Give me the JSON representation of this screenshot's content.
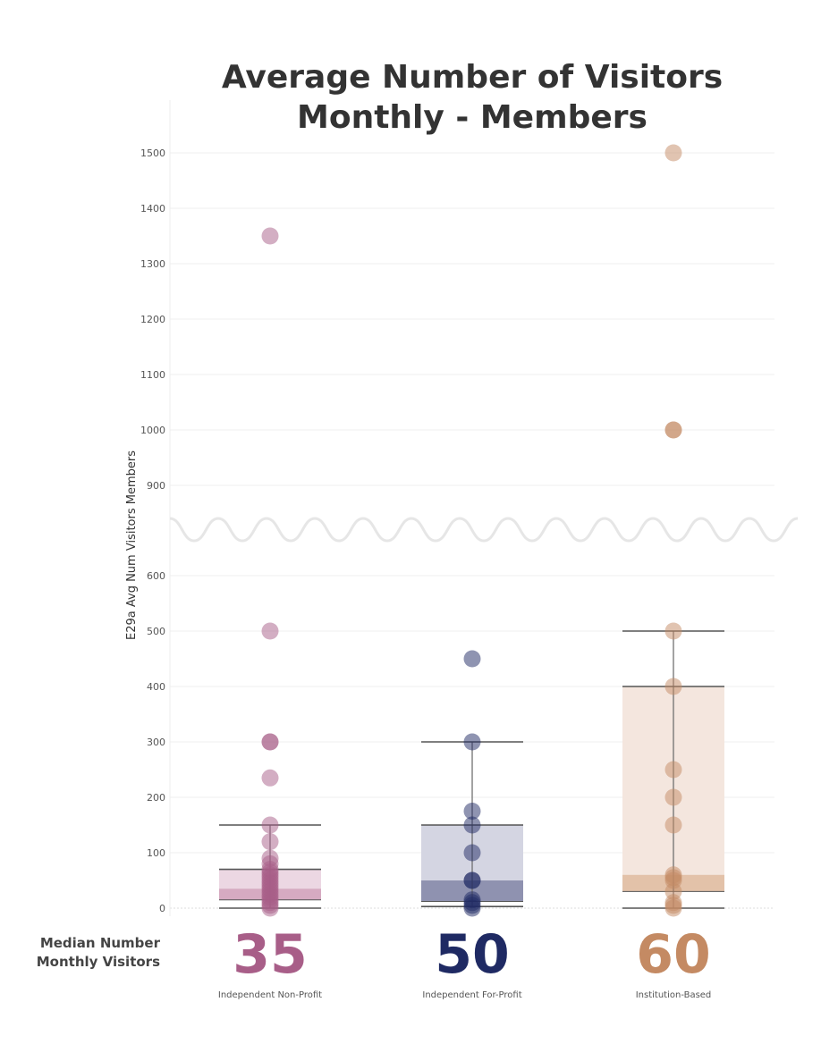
{
  "chart_data": {
    "type": "box-strip",
    "title_lines": [
      "Average Number of Visitors",
      "Monthly - Members"
    ],
    "ylabel": "E29a Avg Num Visitors Members",
    "y_axis": {
      "segments": [
        [
          0,
          650
        ],
        [
          850,
          1550
        ]
      ],
      "break_between": [
        650,
        850
      ],
      "ticks": [
        0,
        100,
        200,
        300,
        400,
        500,
        600,
        900,
        1000,
        1100,
        1200,
        1300,
        1400,
        1500
      ]
    },
    "median_caption_lines": [
      "Median Number",
      "Monthly Visitors"
    ],
    "categories": [
      {
        "label": "Independent Non-Profit",
        "median_label": "35",
        "color": "#a85e88",
        "box_fill": "#ecd7e3",
        "median_band_fill": "#d6aac1",
        "whisker_low": 0,
        "q1": 15,
        "median": 35,
        "q3": 70,
        "whisker_high": 150,
        "points": [
          1350,
          500,
          300,
          300,
          235,
          150,
          120,
          90,
          80,
          70,
          65,
          60,
          55,
          50,
          45,
          40,
          35,
          30,
          25,
          20,
          15,
          10,
          5,
          0
        ]
      },
      {
        "label": "Independent For-Profit",
        "median_label": "50",
        "color": "#1f2a63",
        "box_fill": "#d4d5e2",
        "median_band_fill": "#8f92b0",
        "whisker_low": 3,
        "q1": 12,
        "median": 50,
        "q3": 150,
        "whisker_high": 300,
        "points": [
          450,
          300,
          175,
          150,
          100,
          50,
          50,
          15,
          10,
          5,
          0
        ]
      },
      {
        "label": "Institution-Based",
        "median_label": "60",
        "color": "#c48a63",
        "box_fill": "#f4e6de",
        "median_band_fill": "#e3c2a9",
        "whisker_low": 0,
        "q1": 30,
        "median": 60,
        "q3": 400,
        "whisker_high": 500,
        "points": [
          1500,
          1000,
          1000,
          500,
          400,
          250,
          200,
          150,
          60,
          55,
          50,
          30,
          10,
          5,
          0
        ]
      }
    ]
  }
}
